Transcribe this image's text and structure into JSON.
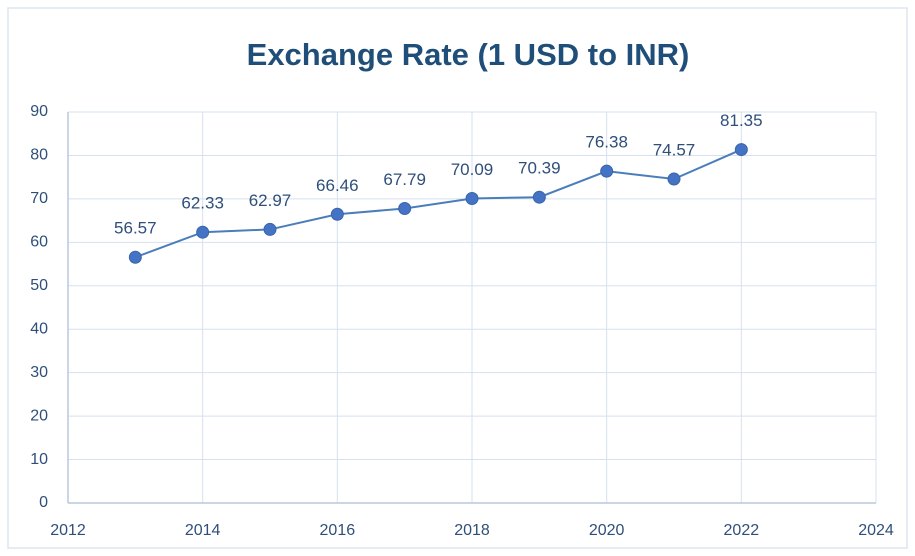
{
  "chart_data": {
    "type": "line",
    "title": "Exchange Rate (1 USD to INR)",
    "x": [
      2013,
      2014,
      2015,
      2016,
      2017,
      2018,
      2019,
      2020,
      2021,
      2022
    ],
    "series": [
      {
        "name": "Exchange Rate",
        "color": "#4a7ebb",
        "marker_color": "#4472c4",
        "values": [
          56.57,
          62.33,
          62.97,
          66.46,
          67.79,
          70.09,
          70.39,
          76.38,
          74.57,
          81.35
        ]
      }
    ],
    "xlim": [
      2012,
      2024
    ],
    "xticks": [
      2012,
      2014,
      2016,
      2018,
      2020,
      2022,
      2024
    ],
    "ylim": [
      0,
      90
    ],
    "yticks": [
      0,
      10,
      20,
      30,
      40,
      50,
      60,
      70,
      80,
      90
    ],
    "grid": true
  }
}
